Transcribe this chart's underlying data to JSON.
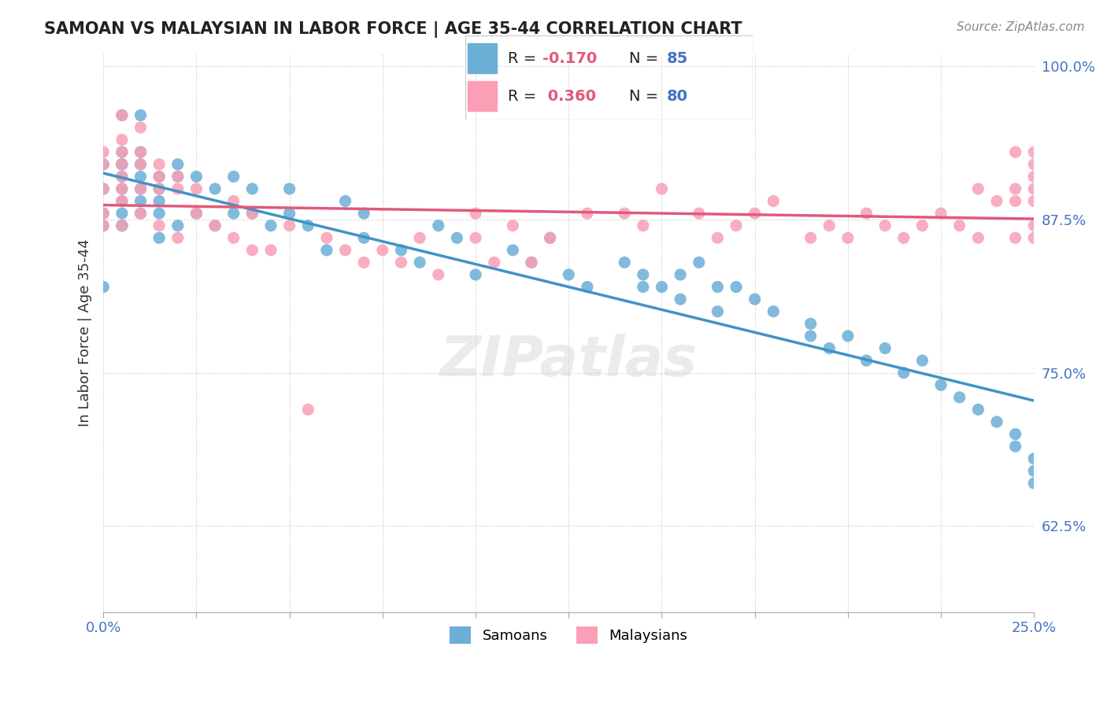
{
  "title": "SAMOAN VS MALAYSIAN IN LABOR FORCE | AGE 35-44 CORRELATION CHART",
  "source_text": "Source: ZipAtlas.com",
  "xlabel": "",
  "ylabel": "In Labor Force | Age 35-44",
  "xlim": [
    0.0,
    0.25
  ],
  "ylim": [
    0.555,
    1.01
  ],
  "xticks": [
    0.0,
    0.025,
    0.05,
    0.075,
    0.1,
    0.125,
    0.15,
    0.175,
    0.2,
    0.225,
    0.25
  ],
  "xticklabels": [
    "0.0%",
    "",
    "",
    "",
    "",
    "",
    "",
    "",
    "",
    "",
    "25.0%"
  ],
  "ytick_positions": [
    0.625,
    0.75,
    0.875,
    1.0
  ],
  "ytick_labels": [
    "62.5%",
    "75.0%",
    "87.5%",
    "100.0%"
  ],
  "blue_color": "#6baed6",
  "pink_color": "#fa9fb5",
  "blue_line_color": "#4292c6",
  "pink_line_color": "#e05a7a",
  "R_blue": -0.17,
  "N_blue": 85,
  "R_pink": 0.36,
  "N_pink": 80,
  "watermark": "ZIPatlas",
  "legend_label_blue": "Samoans",
  "legend_label_pink": "Malaysians",
  "blue_scatter_x": [
    0.0,
    0.0,
    0.0,
    0.0,
    0.0,
    0.005,
    0.005,
    0.005,
    0.005,
    0.005,
    0.005,
    0.005,
    0.005,
    0.005,
    0.005,
    0.01,
    0.01,
    0.01,
    0.01,
    0.01,
    0.01,
    0.01,
    0.015,
    0.015,
    0.015,
    0.015,
    0.015,
    0.02,
    0.02,
    0.02,
    0.025,
    0.025,
    0.03,
    0.03,
    0.035,
    0.035,
    0.04,
    0.04,
    0.045,
    0.05,
    0.05,
    0.055,
    0.06,
    0.065,
    0.07,
    0.07,
    0.08,
    0.085,
    0.09,
    0.095,
    0.1,
    0.11,
    0.115,
    0.12,
    0.125,
    0.13,
    0.14,
    0.145,
    0.145,
    0.15,
    0.155,
    0.155,
    0.16,
    0.165,
    0.165,
    0.17,
    0.175,
    0.18,
    0.19,
    0.19,
    0.195,
    0.2,
    0.205,
    0.21,
    0.215,
    0.22,
    0.225,
    0.23,
    0.235,
    0.24,
    0.245,
    0.245,
    0.25,
    0.25,
    0.25
  ],
  "blue_scatter_y": [
    0.92,
    0.9,
    0.88,
    0.87,
    0.82,
    0.96,
    0.93,
    0.92,
    0.92,
    0.91,
    0.9,
    0.89,
    0.88,
    0.87,
    0.87,
    0.96,
    0.93,
    0.92,
    0.91,
    0.9,
    0.89,
    0.88,
    0.91,
    0.9,
    0.89,
    0.88,
    0.86,
    0.92,
    0.91,
    0.87,
    0.91,
    0.88,
    0.9,
    0.87,
    0.91,
    0.88,
    0.9,
    0.88,
    0.87,
    0.9,
    0.88,
    0.87,
    0.85,
    0.89,
    0.88,
    0.86,
    0.85,
    0.84,
    0.87,
    0.86,
    0.83,
    0.85,
    0.84,
    0.86,
    0.83,
    0.82,
    0.84,
    0.83,
    0.82,
    0.82,
    0.83,
    0.81,
    0.84,
    0.82,
    0.8,
    0.82,
    0.81,
    0.8,
    0.79,
    0.78,
    0.77,
    0.78,
    0.76,
    0.77,
    0.75,
    0.76,
    0.74,
    0.73,
    0.72,
    0.71,
    0.7,
    0.69,
    0.68,
    0.67,
    0.66
  ],
  "pink_scatter_x": [
    0.0,
    0.0,
    0.0,
    0.0,
    0.0,
    0.005,
    0.005,
    0.005,
    0.005,
    0.005,
    0.005,
    0.005,
    0.005,
    0.01,
    0.01,
    0.01,
    0.01,
    0.01,
    0.015,
    0.015,
    0.015,
    0.015,
    0.02,
    0.02,
    0.02,
    0.025,
    0.025,
    0.03,
    0.035,
    0.035,
    0.04,
    0.04,
    0.045,
    0.05,
    0.055,
    0.06,
    0.065,
    0.07,
    0.075,
    0.08,
    0.085,
    0.09,
    0.1,
    0.1,
    0.105,
    0.11,
    0.115,
    0.12,
    0.13,
    0.14,
    0.145,
    0.15,
    0.16,
    0.165,
    0.17,
    0.175,
    0.18,
    0.19,
    0.195,
    0.2,
    0.205,
    0.21,
    0.215,
    0.22,
    0.225,
    0.23,
    0.235,
    0.235,
    0.24,
    0.245,
    0.245,
    0.245,
    0.245,
    0.25,
    0.25,
    0.25,
    0.25,
    0.25,
    0.25,
    0.25
  ],
  "pink_scatter_y": [
    0.93,
    0.92,
    0.9,
    0.88,
    0.87,
    0.96,
    0.94,
    0.93,
    0.92,
    0.91,
    0.9,
    0.89,
    0.87,
    0.95,
    0.93,
    0.92,
    0.9,
    0.88,
    0.92,
    0.91,
    0.9,
    0.87,
    0.91,
    0.9,
    0.86,
    0.9,
    0.88,
    0.87,
    0.89,
    0.86,
    0.88,
    0.85,
    0.85,
    0.87,
    0.72,
    0.86,
    0.85,
    0.84,
    0.85,
    0.84,
    0.86,
    0.83,
    0.88,
    0.86,
    0.84,
    0.87,
    0.84,
    0.86,
    0.88,
    0.88,
    0.87,
    0.9,
    0.88,
    0.86,
    0.87,
    0.88,
    0.89,
    0.86,
    0.87,
    0.86,
    0.88,
    0.87,
    0.86,
    0.87,
    0.88,
    0.87,
    0.86,
    0.9,
    0.89,
    0.93,
    0.9,
    0.89,
    0.86,
    0.93,
    0.92,
    0.91,
    0.9,
    0.89,
    0.87,
    0.86
  ]
}
